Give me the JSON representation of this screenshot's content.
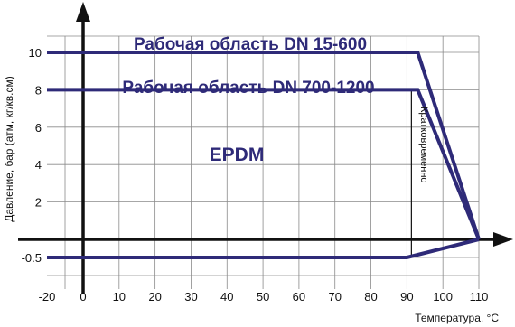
{
  "chart_data": {
    "type": "line",
    "xlabel": "Температура, °С",
    "ylabel": "Давление, бар (атм, кг/кв.см)",
    "x_ticks": [
      -20,
      0,
      10,
      20,
      30,
      40,
      50,
      60,
      70,
      80,
      90,
      100,
      110
    ],
    "y_ticks": [
      -0.5,
      2,
      4,
      6,
      8,
      10
    ],
    "xlim": [
      -20,
      110
    ],
    "ylim": [
      -0.5,
      10
    ],
    "grid": true,
    "series": [
      {
        "label": "Рабочая область DN 15-600",
        "points": [
          [
            -20,
            10
          ],
          [
            93,
            10
          ],
          [
            110,
            0
          ]
        ]
      },
      {
        "label": "Рабочая область DN 700-1200",
        "points": [
          [
            -20,
            8
          ],
          [
            93,
            8
          ],
          [
            110,
            0
          ]
        ]
      },
      {
        "label": "",
        "points": [
          [
            -20,
            -0.5
          ],
          [
            90,
            -0.5
          ],
          [
            110,
            0
          ]
        ]
      }
    ],
    "annotations": {
      "material": "EPDM",
      "short_term": "Кратковременно"
    }
  },
  "colors": {
    "series": "#2e2a78",
    "axis": "#111111",
    "grid": "#8a8a8a"
  }
}
